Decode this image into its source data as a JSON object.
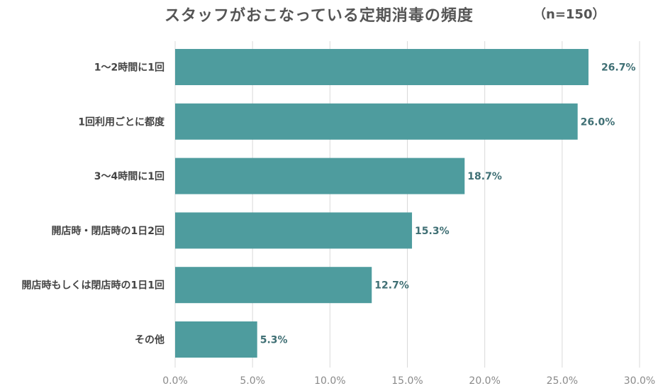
{
  "chart_data": {
    "type": "bar",
    "orientation": "horizontal",
    "title": "スタッフがおこなっている定期消毒の頻度",
    "subtitle": "（n=150）",
    "categories": [
      "1～2時間に1回",
      "1回利用ごとに都度",
      "3～4時間に1回",
      "開店時・閉店時の1日2回",
      "開店時もしくは閉店時の1日1回",
      "その他"
    ],
    "values": [
      26.7,
      26.0,
      18.7,
      15.3,
      12.7,
      5.3
    ],
    "value_labels": [
      "26.7%",
      "26.0%",
      "18.7%",
      "15.3%",
      "12.7%",
      "5.3%"
    ],
    "xlim": [
      0,
      30
    ],
    "xticks": [
      "0.0%",
      "5.0%",
      "10.0%",
      "15.0%",
      "20.0%",
      "25.0%",
      "30.0%"
    ],
    "grid": "vertical",
    "bar_color": "#4e9c9e",
    "label_color": "#3f6f74"
  }
}
